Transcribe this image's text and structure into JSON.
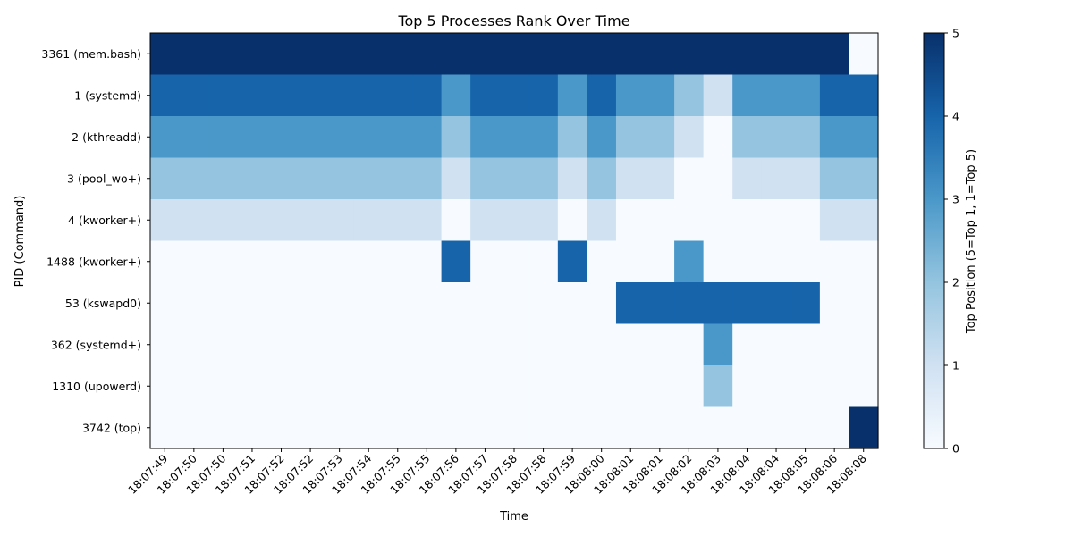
{
  "chart_data": {
    "type": "heatmap",
    "title": "Top 5 Processes Rank Over Time",
    "xlabel": "Time",
    "ylabel": "PID (Command)",
    "x": [
      "18:07:49",
      "18:07:50",
      "18:07:50",
      "18:07:51",
      "18:07:52",
      "18:07:52",
      "18:07:53",
      "18:07:54",
      "18:07:55",
      "18:07:55",
      "18:07:56",
      "18:07:57",
      "18:07:58",
      "18:07:58",
      "18:07:59",
      "18:08:00",
      "18:08:01",
      "18:08:01",
      "18:08:02",
      "18:08:03",
      "18:08:04",
      "18:08:04",
      "18:08:05",
      "18:08:06",
      "18:08:08"
    ],
    "y": [
      "3361 (mem.bash)",
      "1 (systemd)",
      "2 (kthreadd)",
      "3 (pool_wo+)",
      "4 (kworker+)",
      "1488 (kworker+)",
      "53 (kswapd0)",
      "362 (systemd+)",
      "1310 (upowerd)",
      "3742 (top)"
    ],
    "values": [
      [
        5,
        5,
        5,
        5,
        5,
        5,
        5,
        5,
        5,
        5,
        5,
        5,
        5,
        5,
        5,
        5,
        5,
        5,
        5,
        5,
        5,
        5,
        5,
        5,
        0
      ],
      [
        4,
        4,
        4,
        4,
        4,
        4,
        4,
        4,
        4,
        4,
        3,
        4,
        4,
        4,
        3,
        4,
        3,
        3,
        2,
        1,
        3,
        3,
        3,
        4,
        4
      ],
      [
        3,
        3,
        3,
        3,
        3,
        3,
        3,
        3,
        3,
        3,
        2,
        3,
        3,
        3,
        2,
        3,
        2,
        2,
        1,
        0,
        2,
        2,
        2,
        3,
        3
      ],
      [
        2,
        2,
        2,
        2,
        2,
        2,
        2,
        2,
        2,
        2,
        1,
        2,
        2,
        2,
        1,
        2,
        1,
        1,
        0,
        0,
        1,
        1,
        1,
        2,
        2
      ],
      [
        1,
        1,
        1,
        1,
        1,
        1,
        1,
        1,
        1,
        1,
        0,
        1,
        1,
        1,
        0,
        1,
        0,
        0,
        0,
        0,
        0,
        0,
        0,
        1,
        1
      ],
      [
        0,
        0,
        0,
        0,
        0,
        0,
        0,
        0,
        0,
        0,
        4,
        0,
        0,
        0,
        4,
        0,
        0,
        0,
        3,
        0,
        0,
        0,
        0,
        0,
        0
      ],
      [
        0,
        0,
        0,
        0,
        0,
        0,
        0,
        0,
        0,
        0,
        0,
        0,
        0,
        0,
        0,
        0,
        4,
        4,
        4,
        4,
        4,
        4,
        4,
        0,
        0
      ],
      [
        0,
        0,
        0,
        0,
        0,
        0,
        0,
        0,
        0,
        0,
        0,
        0,
        0,
        0,
        0,
        0,
        0,
        0,
        0,
        3,
        0,
        0,
        0,
        0,
        0
      ],
      [
        0,
        0,
        0,
        0,
        0,
        0,
        0,
        0,
        0,
        0,
        0,
        0,
        0,
        0,
        0,
        0,
        0,
        0,
        0,
        2,
        0,
        0,
        0,
        0,
        0
      ],
      [
        0,
        0,
        0,
        0,
        0,
        0,
        0,
        0,
        0,
        0,
        0,
        0,
        0,
        0,
        0,
        0,
        0,
        0,
        0,
        0,
        0,
        0,
        0,
        0,
        5
      ]
    ],
    "colorbar": {
      "label": "Top Position (5=Top 1, 1=Top 5)",
      "range": [
        0,
        5
      ],
      "ticks": [
        "0",
        "1",
        "2",
        "3",
        "4",
        "5"
      ]
    },
    "palette": [
      "#f7fbff",
      "#d0e1f2",
      "#94c4df",
      "#4a98c9",
      "#1764ab",
      "#08306b"
    ],
    "grid": false,
    "legend": "colorbar-right"
  }
}
